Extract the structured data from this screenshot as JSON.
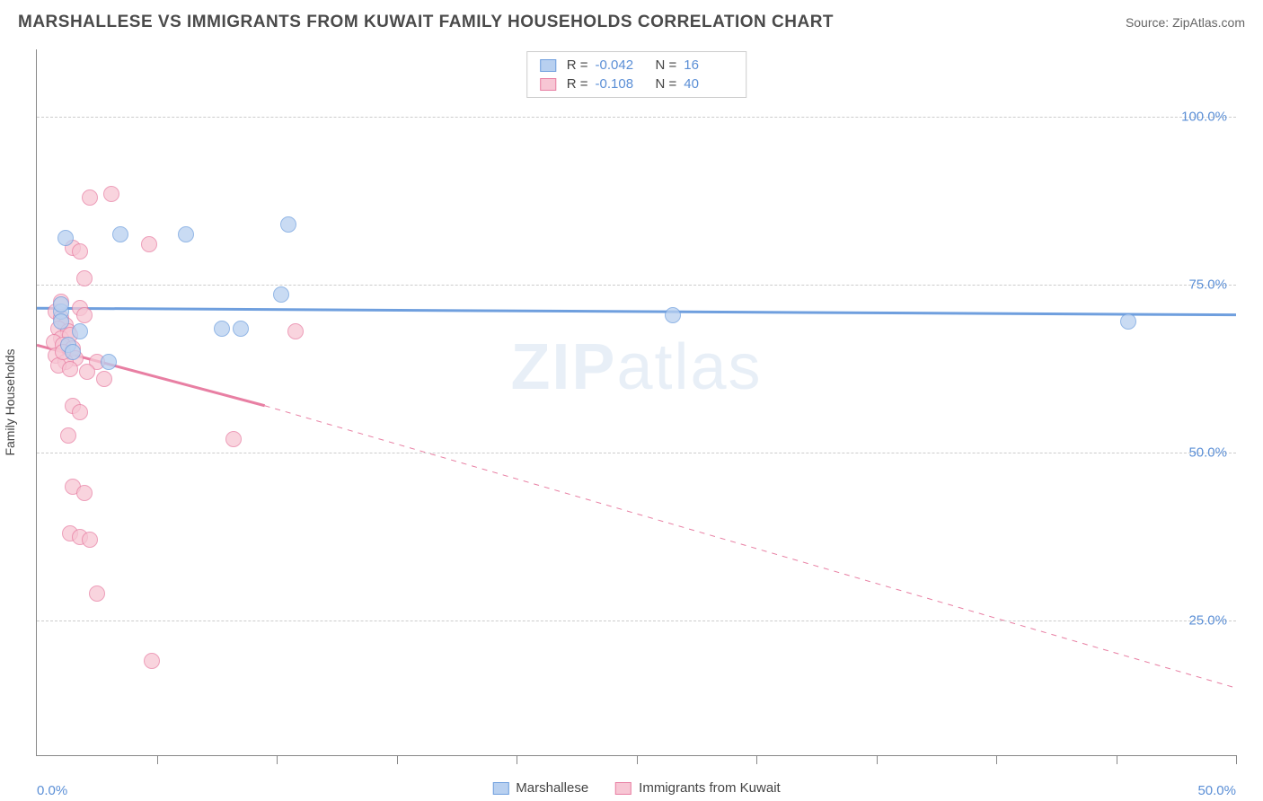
{
  "title": "MARSHALLESE VS IMMIGRANTS FROM KUWAIT FAMILY HOUSEHOLDS CORRELATION CHART",
  "source": "Source: ZipAtlas.com",
  "watermark_bold": "ZIP",
  "watermark_rest": "atlas",
  "ylabel": "Family Households",
  "chart": {
    "type": "scatter",
    "xlim": [
      0,
      50
    ],
    "ylim": [
      5,
      110
    ],
    "ytick_values": [
      25,
      50,
      75,
      100
    ],
    "ytick_labels": [
      "25.0%",
      "50.0%",
      "75.0%",
      "100.0%"
    ],
    "xtick_values": [
      0,
      5,
      10,
      15,
      20,
      25,
      30,
      35,
      40,
      45,
      50
    ],
    "xtick_label_left": "0.0%",
    "xtick_label_right": "50.0%",
    "background_color": "#ffffff",
    "grid_color": "#cccccc",
    "axis_color": "#888888",
    "label_color": "#5b8fd6"
  },
  "series": [
    {
      "name": "Marshallese",
      "color_fill": "#b8d0f0",
      "color_stroke": "#6f9fde",
      "marker_radius": 9,
      "r_value": "-0.042",
      "n_value": "16",
      "trend": {
        "x1": 0,
        "y1": 71.5,
        "x2": 50,
        "y2": 70.5,
        "width": 3,
        "dash": "none"
      },
      "points": [
        [
          1.2,
          82
        ],
        [
          3.5,
          82.5
        ],
        [
          6.2,
          82.5
        ],
        [
          10.5,
          84
        ],
        [
          26.5,
          70.5
        ],
        [
          45.5,
          69.5
        ],
        [
          1.0,
          71
        ],
        [
          1.8,
          68
        ],
        [
          1.3,
          66
        ],
        [
          1.0,
          69.5
        ],
        [
          7.7,
          68.5
        ],
        [
          8.5,
          68.5
        ],
        [
          10.2,
          73.5
        ],
        [
          1.5,
          65
        ],
        [
          3.0,
          63.5
        ],
        [
          1.0,
          72
        ]
      ]
    },
    {
      "name": "Immigrants from Kuwait",
      "color_fill": "#f7c6d4",
      "color_stroke": "#e87fa3",
      "marker_radius": 9,
      "r_value": "-0.108",
      "n_value": "40",
      "trend_solid": {
        "x1": 0,
        "y1": 66,
        "x2": 9.5,
        "y2": 57,
        "width": 3
      },
      "trend_dash": {
        "x1": 9.5,
        "y1": 57,
        "x2": 50,
        "y2": 15,
        "width": 1
      },
      "points": [
        [
          2.2,
          88
        ],
        [
          3.1,
          88.5
        ],
        [
          1.5,
          80.5
        ],
        [
          1.8,
          80
        ],
        [
          4.7,
          81
        ],
        [
          2.0,
          76
        ],
        [
          0.8,
          71
        ],
        [
          1.0,
          70
        ],
        [
          1.2,
          69
        ],
        [
          0.9,
          68.5
        ],
        [
          1.3,
          68
        ],
        [
          1.0,
          67
        ],
        [
          1.4,
          67.5
        ],
        [
          0.7,
          66.5
        ],
        [
          1.1,
          66
        ],
        [
          1.5,
          65.5
        ],
        [
          0.8,
          64.5
        ],
        [
          1.6,
          64
        ],
        [
          1.2,
          63.5
        ],
        [
          2.5,
          63.5
        ],
        [
          0.9,
          63
        ],
        [
          2.1,
          62
        ],
        [
          2.8,
          61
        ],
        [
          10.8,
          68
        ],
        [
          1.5,
          57
        ],
        [
          1.8,
          56
        ],
        [
          1.3,
          52.5
        ],
        [
          8.2,
          52
        ],
        [
          1.5,
          45
        ],
        [
          2.0,
          44
        ],
        [
          1.4,
          38
        ],
        [
          1.8,
          37.5
        ],
        [
          2.2,
          37
        ],
        [
          2.5,
          29
        ],
        [
          4.8,
          19
        ],
        [
          1.0,
          72.5
        ],
        [
          1.8,
          71.5
        ],
        [
          2.0,
          70.5
        ],
        [
          1.1,
          65
        ],
        [
          1.4,
          62.5
        ]
      ]
    }
  ],
  "legend_top": [
    {
      "series_index": 0
    },
    {
      "series_index": 1
    }
  ],
  "legend_bottom": [
    {
      "series_index": 0
    },
    {
      "series_index": 1
    }
  ]
}
